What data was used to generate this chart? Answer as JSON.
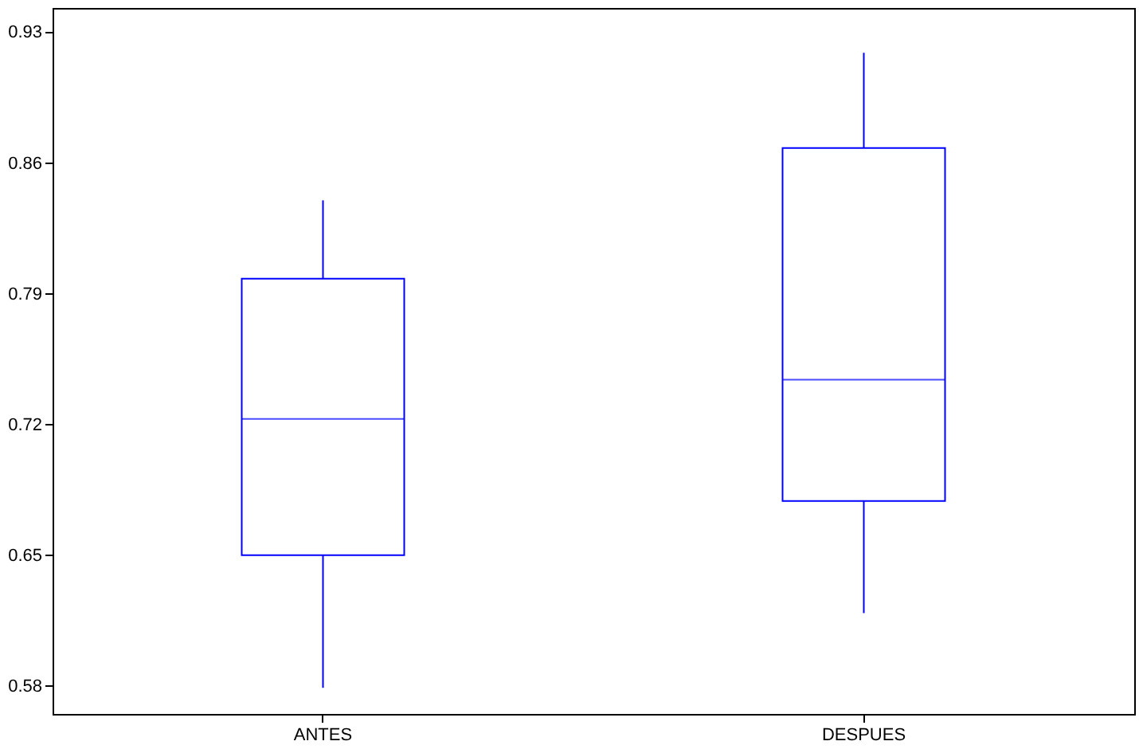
{
  "chart_data": {
    "type": "box",
    "categories": [
      "ANTES",
      "DESPUES"
    ],
    "color": "#0000ff",
    "boxes": [
      {
        "low": 0.579,
        "q1": 0.65,
        "median": 0.723,
        "q3": 0.798,
        "high": 0.84
      },
      {
        "low": 0.619,
        "q1": 0.679,
        "median": 0.744,
        "q3": 0.868,
        "high": 0.919
      }
    ],
    "ylim": [
      0.565,
      0.943
    ],
    "yticks": [
      0.58,
      0.65,
      0.72,
      0.79,
      0.86,
      0.93
    ],
    "grid": false
  }
}
